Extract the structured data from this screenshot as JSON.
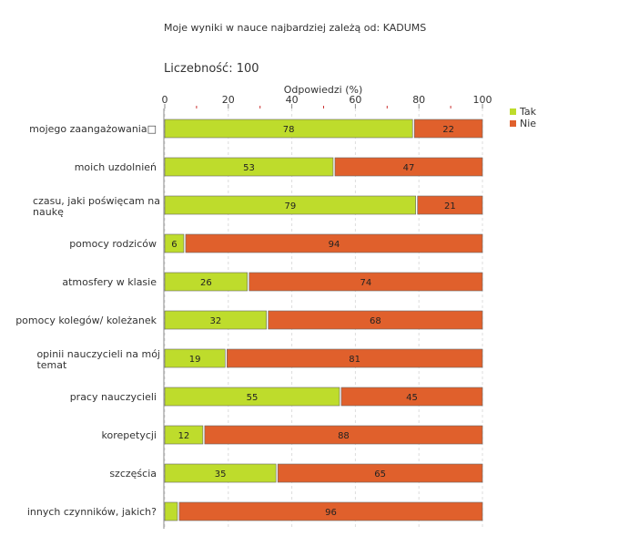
{
  "chart_data": {
    "type": "bar",
    "stacked": true,
    "orientation": "horizontal",
    "title": "Moje wyniki w nauce najbardziej zależą od: KADUMS",
    "count_label": "Liczebność:",
    "count_value": "100",
    "xlabel": "Odpowiedzi (%)",
    "xlim": [
      0,
      100
    ],
    "xticks": [
      0,
      20,
      40,
      60,
      80,
      100
    ],
    "grid": true,
    "legend_position": "top-right",
    "categories": [
      [
        "mojego zaangażowania□"
      ],
      [
        "moich uzdolnień"
      ],
      [
        "czasu, jaki poświęcam na",
        "naukę"
      ],
      [
        "pomocy rodziców"
      ],
      [
        "atmosfery w klasie"
      ],
      [
        "pomocy kolegów/ koleżanek"
      ],
      [
        "opinii nauczycieli na mój",
        "temat"
      ],
      [
        "pracy nauczycieli"
      ],
      [
        "korepetycji"
      ],
      [
        "szczęścia"
      ],
      [
        "innych czynników, jakich?"
      ]
    ],
    "series": [
      {
        "name": "Tak",
        "color": "#bedc2c",
        "values": [
          78,
          53,
          79,
          6,
          26,
          32,
          19,
          55,
          12,
          35,
          4
        ],
        "labels": [
          "78",
          "53",
          "79",
          "6",
          "26",
          "32",
          "19",
          "55",
          "12",
          "35",
          ""
        ]
      },
      {
        "name": "Nie",
        "color": "#e0602c",
        "values": [
          22,
          47,
          21,
          94,
          74,
          68,
          81,
          45,
          88,
          65,
          96
        ],
        "labels": [
          "22",
          "47",
          "21",
          "94",
          "74",
          "68",
          "81",
          "45",
          "88",
          "65",
          "96"
        ]
      }
    ]
  }
}
